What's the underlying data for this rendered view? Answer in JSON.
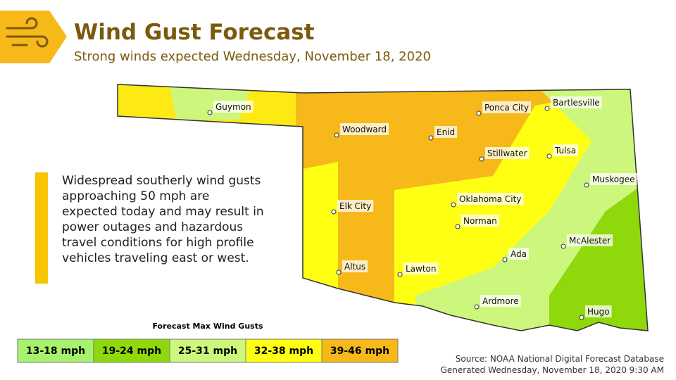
{
  "header": {
    "title": "Wind Gust Forecast",
    "subtitle": "Strong winds expected Wednesday, November 18, 2020"
  },
  "description": "Widespread southerly wind gusts approaching 50 mph are expected today and may result in power outages and hazardous travel conditions for high profile vehicles traveling east or west.",
  "cities": [
    "Guymon",
    "Woodward",
    "Enid",
    "Ponca City",
    "Bartlesville",
    "Stillwater",
    "Tulsa",
    "Muskogee",
    "Elk City",
    "Oklahoma City",
    "Norman",
    "McAlester",
    "Ada",
    "Altus",
    "Lawton",
    "Ardmore",
    "Hugo"
  ],
  "legend": {
    "title": "Forecast Max Wind Gusts",
    "entries": [
      {
        "label": "13-18 mph",
        "color": "#a6f26e"
      },
      {
        "label": "19-24 mph",
        "color": "#8fd80c"
      },
      {
        "label": "25-31 mph",
        "color": "#ccf77c"
      },
      {
        "label": "32-38 mph",
        "color": "#ffff14"
      },
      {
        "label": "39-46 mph",
        "color": "#f7b81a"
      }
    ]
  },
  "source": [
    "Source: NOAA National Digital Forecast Database",
    "Generated Wednesday, November 18, 2020 9:30 AM"
  ]
}
